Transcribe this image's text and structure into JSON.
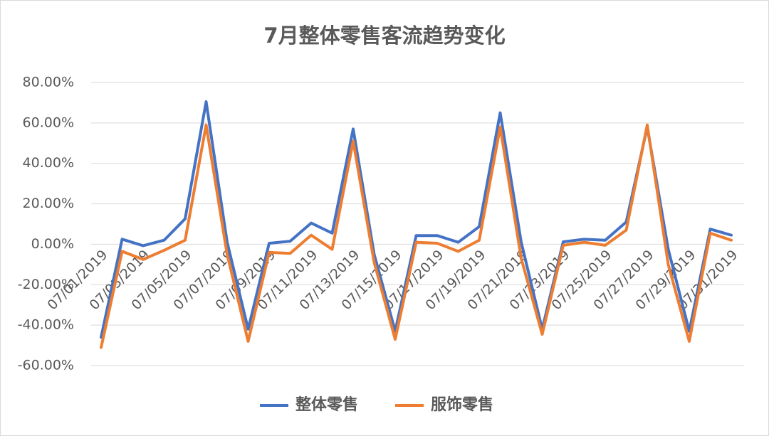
{
  "chart_data": {
    "type": "line",
    "title": "7月整体零售客流趋势变化",
    "categories": [
      "07/01/2019",
      null,
      "07/03/2019",
      null,
      "07/05/2019",
      null,
      "07/07/2019",
      null,
      "07/09/2019",
      null,
      "07/11/2019",
      null,
      "07/13/2019",
      null,
      "07/15/2019",
      null,
      "07/17/2019",
      null,
      "07/19/2019",
      null,
      "07/21/2019",
      null,
      "07/23/2019",
      null,
      "07/25/2019",
      null,
      "07/27/2019",
      null,
      "07/29/2019",
      null,
      "07/31/2019"
    ],
    "series": [
      {
        "name": "整体零售",
        "color": "#4472c4",
        "values": [
          -46,
          2.5,
          -0.7,
          2,
          12.6,
          70.5,
          1,
          -42,
          0.5,
          1.5,
          10.5,
          5.5,
          57,
          -5,
          -43,
          4.3,
          4.3,
          1,
          8.7,
          65,
          1,
          -42,
          1.2,
          2.5,
          2,
          11,
          58,
          -2.5,
          -43,
          7.5,
          4.5
        ]
      },
      {
        "name": "服饰零售",
        "color": "#ed7d31",
        "values": [
          -51,
          -3.5,
          -7.5,
          -3,
          2,
          59,
          -5,
          -48,
          -4,
          -4.5,
          4.5,
          -2.5,
          51,
          -9,
          -47,
          1,
          0.5,
          -3.5,
          2,
          58,
          -7,
          -44.5,
          -0.5,
          1,
          -0.5,
          7,
          59,
          -10,
          -48,
          5.5,
          2
        ]
      }
    ],
    "ylim": [
      -60,
      80
    ],
    "yticks": [
      {
        "value": -60,
        "label": "-60.00%"
      },
      {
        "value": -40,
        "label": "-40.00%"
      },
      {
        "value": -20,
        "label": "-20.00%"
      },
      {
        "value": 0,
        "label": "0.00%"
      },
      {
        "value": 20,
        "label": "20.00%"
      },
      {
        "value": 40,
        "label": "40.00%"
      },
      {
        "value": 60,
        "label": "60.00%"
      },
      {
        "value": 80,
        "label": "80.00%"
      }
    ],
    "grid": true,
    "legend": "bottom"
  }
}
